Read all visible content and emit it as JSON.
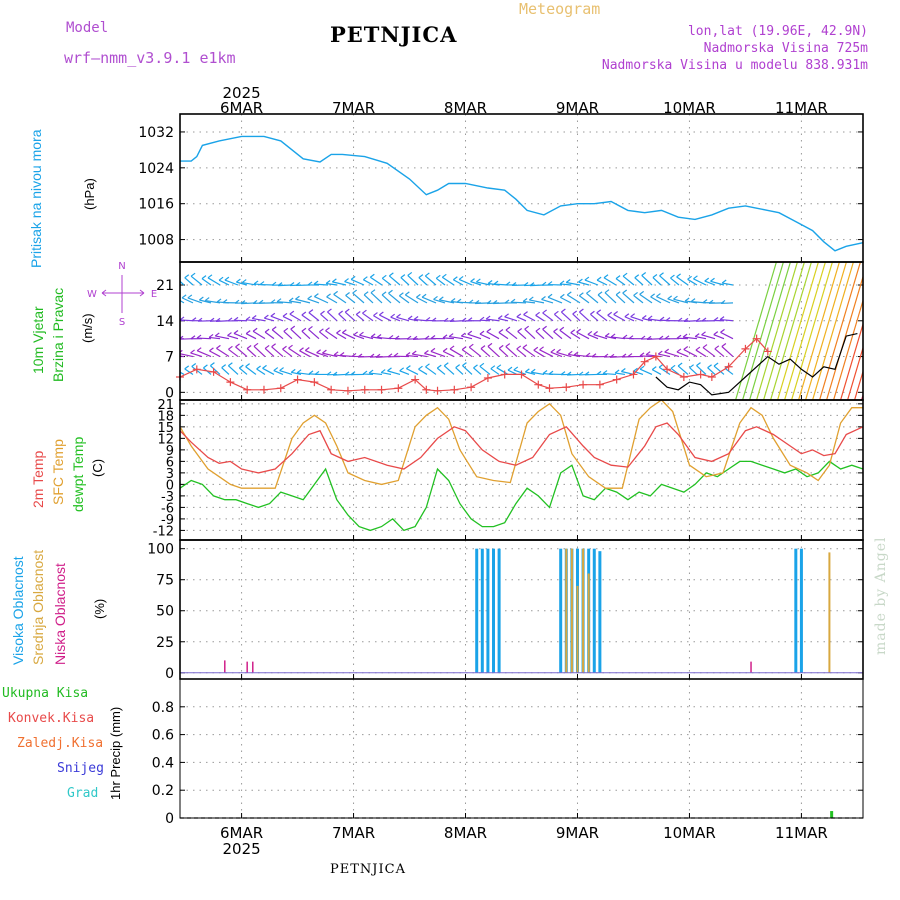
{
  "header": {
    "model_label": "Model",
    "model_name": "wrf—nmm_v3.9.1 e1km",
    "product": "Meteogram",
    "station": "PETNJICA",
    "coords": "lon,lat (19.96E, 42.9N)",
    "elevation": "Nadmorska Visina 725m",
    "model_elevation": "Nadmorska Visina u modelu 838.931m"
  },
  "footer": {
    "station": "PETNJICA"
  },
  "credit": "made by Angel",
  "colors": {
    "pressure": "#1aa3e8",
    "temp2m": "#e84a4a",
    "sfc": "#e0a030",
    "dewpt": "#22c022",
    "high_cloud": "#1aa3e8",
    "mid_cloud": "#d8a840",
    "low_cloud": "#d0208a",
    "wind_label": "#22bb22",
    "compass": "#b040d0",
    "axis_text": "#000000"
  },
  "axes": {
    "year_top": "2025",
    "year_bottom": "2025",
    "days": [
      "6MAR",
      "7MAR",
      "8MAR",
      "9MAR",
      "10MAR",
      "11MAR"
    ]
  },
  "panels": {
    "pressure": {
      "label1": "Pritisak na nivou mora",
      "label2": "(hPa)"
    },
    "wind": {
      "label1": "10m Vjetar",
      "label2": "Brzina i Pravac",
      "label3": "(m/s)",
      "compass": {
        "n": "N",
        "s": "S",
        "w": "W",
        "e": "E"
      }
    },
    "temp": {
      "label_2m": "2m Temp",
      "label_sfc": "SFC Temp",
      "label_dew": "dewpt Temp",
      "unit": "(C)"
    },
    "cloud": {
      "label_high": "Visoka Oblacnost",
      "label_mid": "Srednja Oblacnost",
      "label_low": "Niska Oblacnost",
      "unit": "(%)"
    },
    "precip": {
      "label_total": "Ukupna Kisa",
      "label_conv": "Konvek.Kisa",
      "label_frz": "Zaledj.Kisa",
      "label_snow": "Snijeg",
      "label_hail": "Grad",
      "unit": "1hr Precip (mm)"
    }
  },
  "chart_data": [
    {
      "type": "line",
      "title": "",
      "ylabel": "(hPa)",
      "ylim": [
        1003,
        1036
      ],
      "yticks": [
        1008,
        1016,
        1024,
        1032
      ],
      "x_unit": "day index from 6MAR 00 UTC",
      "xlim": [
        -0.55,
        5.55
      ],
      "series": [
        {
          "name": "Pritisak na nivou mora",
          "x": [
            -0.55,
            -0.45,
            -0.4,
            -0.35,
            -0.2,
            0,
            0.2,
            0.35,
            0.55,
            0.7,
            0.8,
            0.9,
            1.1,
            1.3,
            1.5,
            1.65,
            1.75,
            1.85,
            2.0,
            2.2,
            2.35,
            2.45,
            2.55,
            2.7,
            2.85,
            3.0,
            3.15,
            3.3,
            3.45,
            3.6,
            3.75,
            3.9,
            4.05,
            4.2,
            4.35,
            4.5,
            4.6,
            4.7,
            4.8,
            4.95,
            5.1,
            5.2,
            5.3,
            5.4,
            5.55
          ],
          "y": [
            1025.5,
            1025.5,
            1026.5,
            1029,
            1030,
            1031,
            1031,
            1030,
            1026,
            1025.3,
            1027,
            1027,
            1026.5,
            1025,
            1021.5,
            1018,
            1019,
            1020.5,
            1020.5,
            1019.5,
            1019,
            1017,
            1014.5,
            1013.5,
            1015.5,
            1016,
            1016,
            1016.5,
            1014.5,
            1014,
            1014.5,
            1013,
            1012.5,
            1013.5,
            1015,
            1015.5,
            1015,
            1014.5,
            1014,
            1012,
            1010,
            1007.5,
            1005.5,
            1006.5,
            1007.3
          ]
        }
      ]
    },
    {
      "type": "line",
      "title": "",
      "ylabel": "(m/s)",
      "ylim": [
        -1.5,
        25.5
      ],
      "yticks": [
        0,
        7,
        14,
        21
      ],
      "series": [
        {
          "name": "wind speed (red)",
          "x": [
            -0.55,
            -0.4,
            -0.25,
            -0.1,
            0.05,
            0.2,
            0.35,
            0.5,
            0.65,
            0.8,
            0.95,
            1.1,
            1.25,
            1.4,
            1.55,
            1.65,
            1.75,
            1.9,
            2.05,
            2.2,
            2.35,
            2.5,
            2.65,
            2.75,
            2.9,
            3.05,
            3.2,
            3.35,
            3.5,
            3.6,
            3.7,
            3.8,
            3.95,
            4.1,
            4.2,
            4.35,
            4.5,
            4.6,
            4.7
          ],
          "y": [
            3,
            4.5,
            4,
            2,
            0.5,
            0.5,
            0.8,
            2.5,
            2,
            0.5,
            0.3,
            0.5,
            0.5,
            0.8,
            2.5,
            0.5,
            0.3,
            0.5,
            1,
            2.8,
            3.5,
            3.5,
            1.5,
            0.8,
            1,
            1.5,
            1.5,
            2.5,
            3.5,
            6,
            7,
            4.5,
            3,
            3.5,
            3,
            5,
            8.5,
            10.5,
            8
          ]
        },
        {
          "name": "wind speed (black)",
          "x": [
            3.7,
            3.8,
            3.9,
            4.0,
            4.1,
            4.2,
            4.35,
            4.5,
            4.6,
            4.7,
            4.8,
            4.9,
            5.0,
            5.1,
            5.2,
            5.3,
            5.4,
            5.5
          ],
          "y": [
            3,
            1,
            0.5,
            2,
            1.5,
            -0.5,
            0,
            3,
            5,
            7,
            5.5,
            6.5,
            4.5,
            3,
            5,
            4.5,
            11,
            11.5
          ]
        }
      ],
      "arrow_rows_mps": [
        21,
        17.5,
        14,
        10.5,
        7,
        3.5
      ]
    },
    {
      "type": "line",
      "title": "",
      "ylabel": "(C)",
      "ylim": [
        -14.5,
        22
      ],
      "yticks": [
        -12,
        -9,
        -6,
        -3,
        0,
        3,
        6,
        9,
        12,
        15,
        18,
        21
      ],
      "series": [
        {
          "name": "2m Temp",
          "x": [
            -0.55,
            -0.45,
            -0.3,
            -0.2,
            -0.1,
            0,
            0.15,
            0.3,
            0.45,
            0.6,
            0.7,
            0.8,
            0.95,
            1.1,
            1.3,
            1.45,
            1.6,
            1.75,
            1.9,
            2.0,
            2.15,
            2.3,
            2.45,
            2.6,
            2.75,
            2.9,
            3.05,
            3.15,
            3.3,
            3.45,
            3.6,
            3.7,
            3.8,
            3.9,
            4.05,
            4.2,
            4.35,
            4.5,
            4.6,
            4.75,
            4.9,
            5.0,
            5.1,
            5.2,
            5.3,
            5.4,
            5.55
          ],
          "y": [
            14,
            11,
            7,
            5.5,
            6,
            4,
            3,
            4,
            8,
            13,
            14,
            8,
            6,
            7,
            5,
            4,
            7,
            12,
            15,
            14,
            9,
            6,
            5,
            7,
            13,
            15,
            10,
            7,
            5,
            4.5,
            10,
            15,
            16,
            13,
            7,
            6,
            8,
            14,
            15,
            13,
            10,
            8,
            9,
            7.5,
            8,
            13,
            15
          ]
        },
        {
          "name": "SFC Temp",
          "x": [
            -0.55,
            -0.45,
            -0.3,
            -0.2,
            -0.1,
            0,
            0.15,
            0.3,
            0.45,
            0.55,
            0.65,
            0.75,
            0.85,
            0.95,
            1.1,
            1.25,
            1.4,
            1.55,
            1.65,
            1.75,
            1.85,
            1.95,
            2.1,
            2.25,
            2.4,
            2.55,
            2.65,
            2.75,
            2.85,
            2.95,
            3.1,
            3.25,
            3.4,
            3.55,
            3.65,
            3.75,
            3.85,
            4.0,
            4.15,
            4.3,
            4.45,
            4.55,
            4.65,
            4.75,
            4.9,
            5.05,
            5.15,
            5.25,
            5.35,
            5.45,
            5.55
          ],
          "y": [
            15,
            10,
            4,
            2,
            0,
            -1,
            -1,
            -1,
            12,
            16,
            18,
            16,
            10,
            3,
            1,
            0,
            1,
            15,
            18,
            20,
            17,
            9,
            2,
            1,
            0.5,
            16,
            19,
            21,
            18,
            8,
            2,
            -1,
            -1,
            17,
            20,
            22,
            19,
            5,
            2,
            3,
            16,
            20,
            18,
            12,
            5,
            3,
            1,
            5,
            16,
            20,
            20
          ]
        },
        {
          "name": "dewpt Temp",
          "x": [
            -0.55,
            -0.45,
            -0.35,
            -0.25,
            -0.15,
            -0.05,
            0.05,
            0.15,
            0.25,
            0.35,
            0.45,
            0.55,
            0.65,
            0.75,
            0.85,
            0.95,
            1.05,
            1.15,
            1.25,
            1.35,
            1.45,
            1.55,
            1.65,
            1.75,
            1.85,
            1.95,
            2.05,
            2.15,
            2.25,
            2.35,
            2.45,
            2.55,
            2.65,
            2.75,
            2.85,
            2.95,
            3.05,
            3.15,
            3.25,
            3.35,
            3.45,
            3.55,
            3.65,
            3.75,
            3.85,
            3.95,
            4.05,
            4.15,
            4.25,
            4.35,
            4.45,
            4.55,
            4.65,
            4.75,
            4.85,
            4.95,
            5.05,
            5.15,
            5.25,
            5.35,
            5.45,
            5.55
          ],
          "y": [
            -1,
            1,
            0,
            -3,
            -4,
            -4,
            -5,
            -6,
            -5,
            -2,
            -3,
            -4,
            0,
            4,
            -4,
            -8,
            -11,
            -12,
            -11,
            -9,
            -12,
            -11,
            -6,
            4,
            1,
            -5,
            -9,
            -11,
            -11,
            -10,
            -5,
            -1,
            -3,
            -6,
            3,
            5,
            -3,
            -4,
            -1,
            -2,
            -4,
            -2,
            -3,
            0,
            -1,
            -2,
            0,
            3,
            2,
            4,
            6,
            6,
            5,
            4,
            3,
            4,
            2,
            3,
            6,
            4,
            5,
            4
          ]
        }
      ]
    },
    {
      "type": "bar",
      "title": "",
      "ylabel": "(%)",
      "ylim": [
        -5,
        107
      ],
      "yticks": [
        0,
        25,
        50,
        75,
        100
      ],
      "series": [
        {
          "name": "Visoka Oblacnost",
          "x": [
            2.1,
            2.15,
            2.2,
            2.25,
            2.3,
            2.85,
            2.9,
            2.95,
            3.0,
            3.05,
            3.1,
            3.15,
            3.2,
            4.95,
            5.0
          ],
          "values": [
            100,
            100,
            100,
            100,
            100,
            100,
            100,
            100,
            100,
            100,
            100,
            100,
            98,
            100,
            100
          ]
        },
        {
          "name": "Srednja Oblacnost",
          "x": [
            2.9,
            2.95,
            3.0,
            3.05,
            3.1,
            5.25
          ],
          "values": [
            100,
            100,
            70,
            100,
            80,
            97
          ]
        },
        {
          "name": "Niska Oblacnost",
          "x": [
            -0.15,
            0.05,
            0.1,
            4.55
          ],
          "values": [
            10,
            9,
            9,
            9
          ]
        }
      ]
    },
    {
      "type": "bar",
      "title": "",
      "ylabel": "1hr Precip (mm)",
      "ylim": [
        0,
        1
      ],
      "yticks": [
        0,
        0.2,
        0.4,
        0.6,
        0.8
      ],
      "series": [
        {
          "name": "Ukupna Kisa",
          "x": [
            5.27
          ],
          "values": [
            0.05
          ]
        }
      ]
    }
  ]
}
